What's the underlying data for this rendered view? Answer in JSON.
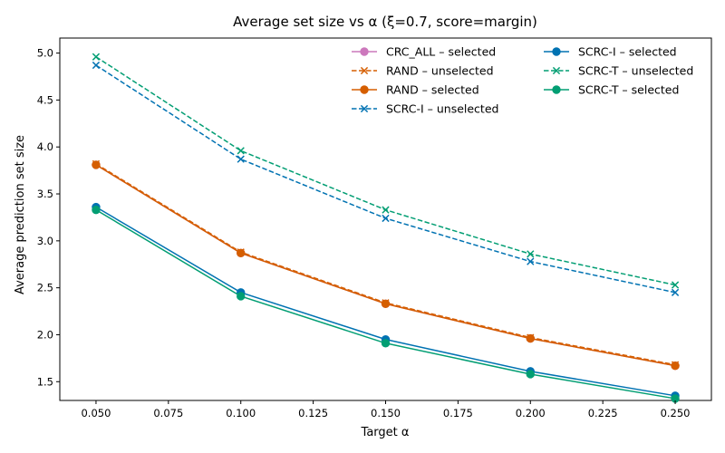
{
  "chart_data": {
    "type": "line",
    "title": "Average set size vs α (ξ=0.7, score=margin)",
    "xlabel": "Target α",
    "ylabel": "Average prediction set size",
    "x": [
      0.05,
      0.1,
      0.15,
      0.2,
      0.25
    ],
    "xlim": [
      0.0375,
      0.2625
    ],
    "ylim": [
      1.3,
      5.16
    ],
    "xticks": [
      0.05,
      0.075,
      0.1,
      0.125,
      0.15,
      0.175,
      0.2,
      0.225,
      0.25
    ],
    "xtick_labels": [
      "0.050",
      "0.075",
      "0.100",
      "0.125",
      "0.150",
      "0.175",
      "0.200",
      "0.225",
      "0.250"
    ],
    "yticks": [
      1.5,
      2.0,
      2.5,
      3.0,
      3.5,
      4.0,
      4.5,
      5.0
    ],
    "ytick_labels": [
      "1.5",
      "2.0",
      "2.5",
      "3.0",
      "3.5",
      "4.0",
      "4.5",
      "5.0"
    ],
    "legend_position": "top-right",
    "series": [
      {
        "name": "CRC_ALL – selected",
        "color": "#cc78bc",
        "style": "solid",
        "marker": "circle",
        "values": [
          3.81,
          2.87,
          2.33,
          1.96,
          1.67
        ]
      },
      {
        "name": "RAND – unselected",
        "color": "#d55e00",
        "style": "dashed",
        "marker": "x",
        "values": [
          3.82,
          2.88,
          2.34,
          1.97,
          1.68
        ]
      },
      {
        "name": "RAND – selected",
        "color": "#d55e00",
        "style": "solid",
        "marker": "circle",
        "values": [
          3.81,
          2.87,
          2.33,
          1.96,
          1.67
        ]
      },
      {
        "name": "SCRC-I – unselected",
        "color": "#0072b2",
        "style": "dashed",
        "marker": "x",
        "values": [
          4.87,
          3.87,
          3.24,
          2.78,
          2.45
        ]
      },
      {
        "name": "SCRC-I – selected",
        "color": "#0072b2",
        "style": "solid",
        "marker": "circle",
        "values": [
          3.36,
          2.45,
          1.95,
          1.61,
          1.35
        ]
      },
      {
        "name": "SCRC-T – unselected",
        "color": "#029e73",
        "style": "dashed",
        "marker": "x",
        "values": [
          4.96,
          3.96,
          3.33,
          2.86,
          2.53
        ]
      },
      {
        "name": "SCRC-T – selected",
        "color": "#029e73",
        "style": "solid",
        "marker": "circle",
        "values": [
          3.33,
          2.41,
          1.91,
          1.58,
          1.32
        ]
      }
    ]
  }
}
